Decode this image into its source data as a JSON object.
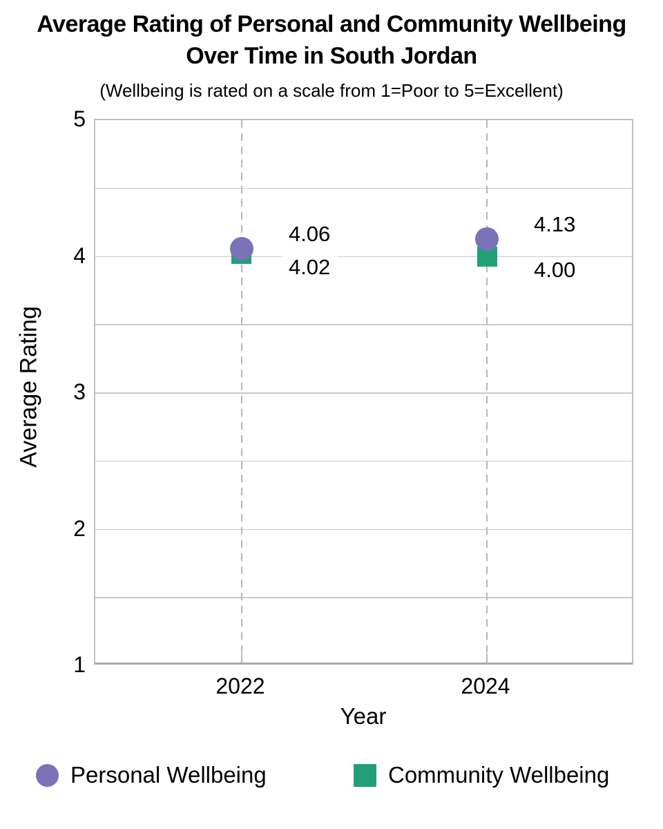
{
  "chart_data": {
    "type": "scatter",
    "title_lines": [
      "Average Rating of Personal and Community Wellbeing",
      "Over Time in South Jordan"
    ],
    "subtitle": "(Wellbeing is rated on a scale from 1=Poor to 5=Excellent)",
    "xlabel": "Year",
    "ylabel": "Average Rating",
    "categories": [
      "2022",
      "2024"
    ],
    "series": [
      {
        "name": "Personal Wellbeing",
        "marker": "circle",
        "color": "#7a73b7",
        "values": [
          4.06,
          4.13
        ],
        "data_labels": [
          "4.06",
          "4.13"
        ]
      },
      {
        "name": "Community Wellbeing",
        "marker": "square",
        "color": "#21a078",
        "values": [
          4.02,
          4.0
        ],
        "data_labels": [
          "4.02",
          "4.00"
        ]
      }
    ],
    "ylim": [
      1,
      5
    ],
    "yticks": [
      5,
      4,
      3,
      2,
      1
    ],
    "gridline_values": [
      4.5,
      4,
      3.5,
      3,
      2.5,
      2,
      1.5
    ],
    "grid": "horizontal solid lines every 0.5; vertical dashed line at each category",
    "legend_position": "bottom",
    "colors": {
      "gridline": "#c9c9c9",
      "axis_border": "#bfbfbf",
      "axis_bottom": "#a9a9a9",
      "dashed_line": "#b5b5b5",
      "text": "#000000"
    }
  }
}
